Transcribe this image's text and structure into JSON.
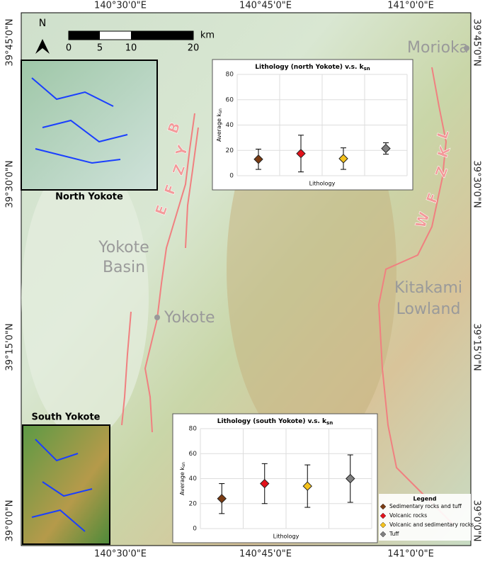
{
  "coordinates": {
    "top": [
      "140°30'0\"E",
      "140°45'0\"E",
      "141°0'0\"E"
    ],
    "bottom": [
      "140°30'0\"E",
      "140°45'0\"E",
      "141°0'0\"E"
    ],
    "left": [
      "39°45'0\"N",
      "39°30'0\"N",
      "39°15'0\"N",
      "39°0'0\"N"
    ],
    "right": [
      "39°45'0\"N",
      "39°30'0\"N",
      "39°15'0\"N",
      "39°0'0\"N"
    ]
  },
  "north_arrow": "N",
  "scale_bar": {
    "unit": "km",
    "ticks": [
      0,
      5,
      10,
      20
    ]
  },
  "places": {
    "morioka": "Morioka",
    "yokote": "Yokote",
    "basin": [
      "Yokote",
      "Basin"
    ],
    "lowland": [
      "Kitakami",
      "Lowland"
    ]
  },
  "fault_zones": {
    "west": [
      "E",
      "F",
      "Z",
      "Y",
      "B"
    ],
    "east": [
      "W",
      "F",
      "Z",
      "K",
      "L"
    ]
  },
  "insets": {
    "north": "North Yokote",
    "south": "South Yokote"
  },
  "legend": {
    "title": "Legend",
    "items": [
      {
        "name": "Sedimentary rocks and tuff",
        "color": "#7a3b12"
      },
      {
        "name": "Volcanic rocks",
        "color": "#e3121b"
      },
      {
        "name": "Volcanic and sedimentary rocks",
        "color": "#f5c21b"
      },
      {
        "name": "Tuff",
        "color": "#808080"
      }
    ]
  },
  "chart_data": [
    {
      "type": "errorbar",
      "title": "Lithology (north Yokote) v.s. k",
      "title_subscript": "sn",
      "x_label": "Lithology",
      "y_label": "Average k",
      "y_label_subscript": "sn",
      "categories": [
        null,
        null,
        null,
        null
      ],
      "values": [
        13,
        17.5,
        13.5,
        21.5
      ],
      "errors": [
        8,
        14.5,
        8.5,
        4.5
      ],
      "colors": [
        "#7a3b12",
        "#e3121b",
        "#f5c21b",
        "#808080"
      ],
      "ylim": [
        0,
        80
      ],
      "yticks": [
        0,
        20,
        40,
        60,
        80
      ],
      "grid": true
    },
    {
      "type": "errorbar",
      "title": "Lithology (south Yokote) v.s. k",
      "title_subscript": "sn",
      "x_label": "Lithology",
      "y_label": "Average k",
      "y_label_subscript": "sn",
      "categories": [
        null,
        null,
        null,
        null
      ],
      "values": [
        24,
        36,
        34,
        40
      ],
      "errors": [
        12,
        16,
        17,
        19
      ],
      "colors": [
        "#7a3b12",
        "#e3121b",
        "#f5c21b",
        "#808080"
      ],
      "ylim": [
        0,
        80
      ],
      "yticks": [
        0,
        20,
        40,
        60,
        80
      ],
      "grid": true
    }
  ]
}
